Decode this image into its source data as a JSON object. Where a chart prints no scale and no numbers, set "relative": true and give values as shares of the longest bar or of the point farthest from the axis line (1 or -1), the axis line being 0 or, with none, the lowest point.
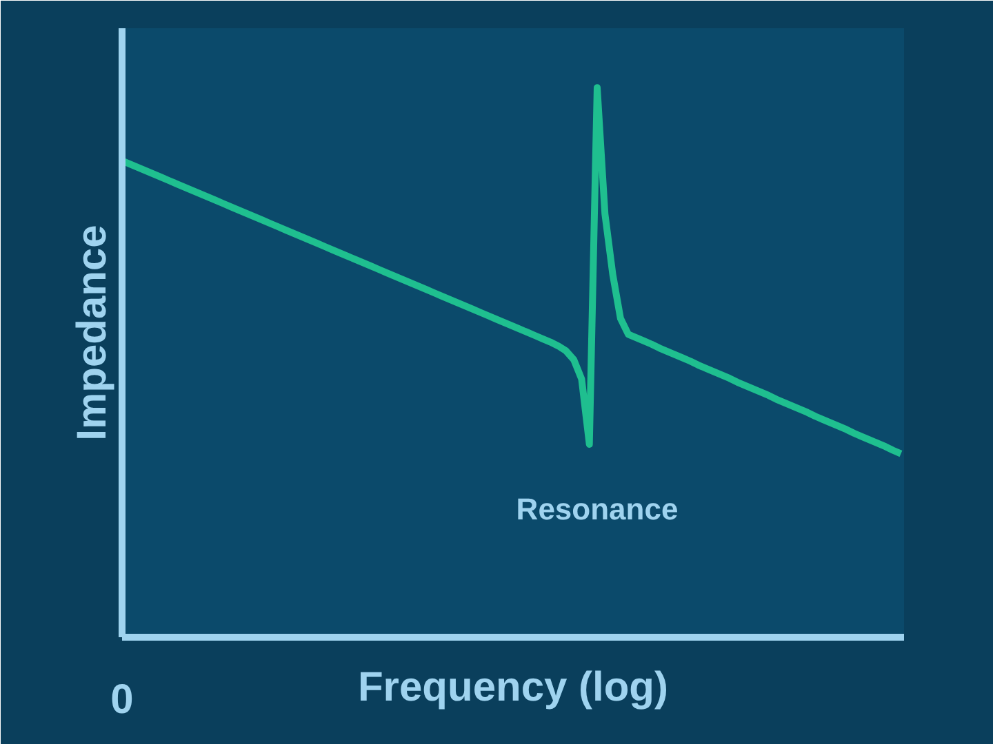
{
  "chart_data": {
    "type": "line",
    "relative": true,
    "xlabel": "Frequency (log)",
    "ylabel": "Impedance",
    "categories": [
      null,
      null,
      null,
      null,
      null,
      null,
      null,
      null,
      null,
      null,
      null,
      null,
      null,
      null,
      null,
      null,
      null,
      null,
      null,
      null,
      null,
      null,
      null,
      null,
      null,
      null,
      null,
      null,
      null,
      null,
      null,
      null,
      null,
      null,
      null,
      null,
      null,
      null,
      null,
      null,
      null,
      null,
      null,
      null,
      null,
      null,
      null,
      null,
      null,
      null,
      null,
      null,
      null,
      null,
      null,
      null,
      null,
      null,
      null,
      null,
      null,
      null,
      null,
      null,
      null,
      null,
      null,
      null,
      null,
      null,
      null,
      null,
      null,
      null,
      null,
      null,
      null,
      null,
      null,
      null,
      null,
      null,
      null,
      null,
      null,
      null,
      null,
      null,
      null,
      null,
      null,
      null,
      null,
      null,
      null,
      null,
      null,
      null,
      null,
      null,
      null
    ],
    "series": [
      {
        "color": "#1fbf8f",
        "values": [
          0.867,
          0.861,
          0.855,
          0.849,
          0.843,
          0.837,
          0.831,
          0.825,
          0.819,
          0.813,
          0.807,
          0.801,
          0.795,
          0.789,
          0.783,
          0.777,
          0.771,
          0.765,
          0.759,
          0.753,
          0.747,
          0.741,
          0.735,
          0.729,
          0.723,
          0.717,
          0.711,
          0.705,
          0.699,
          0.693,
          0.687,
          0.681,
          0.675,
          0.669,
          0.663,
          0.657,
          0.651,
          0.645,
          0.639,
          0.633,
          0.627,
          0.621,
          0.615,
          0.609,
          0.603,
          0.597,
          0.591,
          0.585,
          0.579,
          0.573,
          0.567,
          0.561,
          0.555,
          0.549,
          0.543,
          0.537,
          0.53,
          0.521,
          0.505,
          0.47,
          0.351,
          1.0,
          0.77,
          0.66,
          0.58,
          0.551,
          0.545,
          0.539,
          0.533,
          0.526,
          0.52,
          0.514,
          0.508,
          0.502,
          0.495,
          0.489,
          0.483,
          0.477,
          0.471,
          0.464,
          0.458,
          0.452,
          0.446,
          0.44,
          0.433,
          0.427,
          0.421,
          0.415,
          0.409,
          0.402,
          0.396,
          0.39,
          0.384,
          0.378,
          0.371,
          0.365,
          0.359,
          0.353,
          0.347,
          0.34,
          0.334
        ]
      }
    ],
    "annotations": [
      "0",
      "Resonance"
    ],
    "marker": "none",
    "line_style": "solid"
  }
}
